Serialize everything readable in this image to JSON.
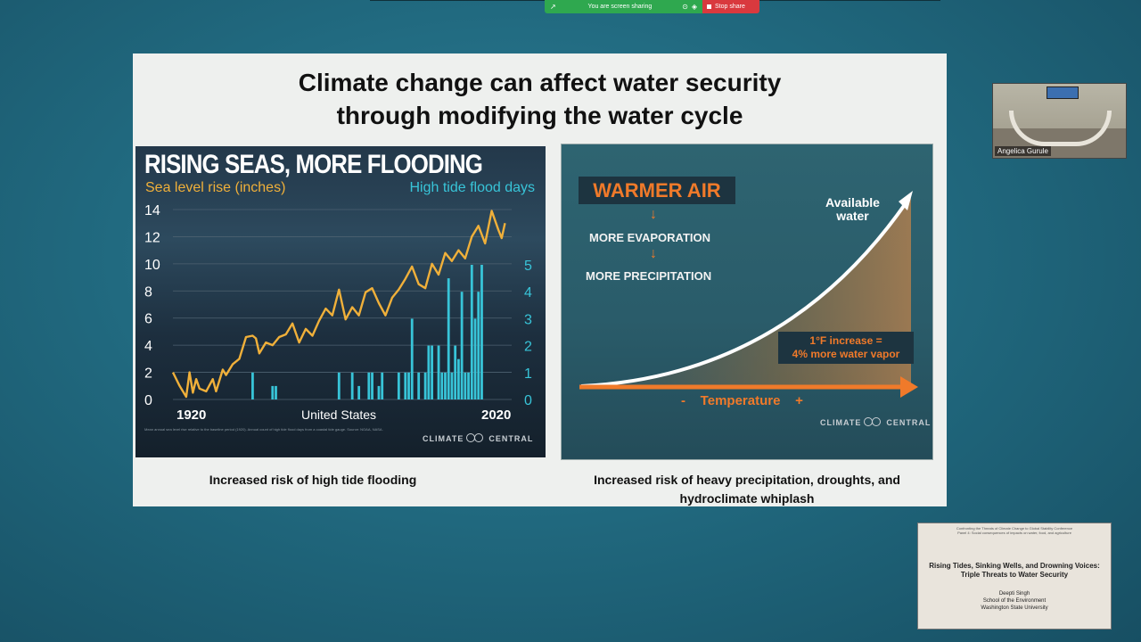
{
  "share_bar": {
    "sharing_text": "You are screen sharing",
    "stop_label": "Stop share",
    "colors": {
      "sharing": "#2fa84f",
      "stop": "#d9393e"
    }
  },
  "slide": {
    "title": "Climate change can affect water security through modifying the water cycle",
    "left_caption": "Increased risk of high tide flooding",
    "right_caption_line1": "Increased risk of heavy precipitation, droughts, and",
    "right_caption_line2": "hydroclimate whiplash",
    "left_figure": {
      "title": "RISING SEAS, MORE FLOODING",
      "left_axis_title": "Sea level rise (inches)",
      "right_axis_title": "High tide flood days",
      "center_label": "United States",
      "x_start_label": "1920",
      "x_end_label": "2020",
      "source_note": "Mean annual sea level rise relative to the baseline period (1920). Annual count of high tide flood days from a coastal tide gauge. Source: NOAA, NASA.",
      "logo": "CLIMATE CENTRAL"
    },
    "right_figure": {
      "box1": "WARMER AIR",
      "step2": "MORE EVAPORATION",
      "step3": "MORE PRECIPITATION",
      "curve_label_line1": "Available",
      "curve_label_line2": "water",
      "vapor_line1": "1°F increase =",
      "vapor_line2": "4% more water vapor",
      "axis_label": "Temperature",
      "axis_minus": "-",
      "axis_plus": "+",
      "logo": "CLIMATE CENTRAL"
    }
  },
  "chart_data": {
    "type": "line",
    "title": "RISING SEAS, MORE FLOODING",
    "subtitle": "United States",
    "xlabel": "",
    "ylabel": "Sea level rise (inches)",
    "y2label": "High tide flood days",
    "xlim": [
      1920,
      2022
    ],
    "ylim": [
      0,
      14
    ],
    "y2lim": [
      0,
      5
    ],
    "y_ticks": [
      0,
      2,
      4,
      6,
      8,
      10,
      12,
      14
    ],
    "y2_ticks": [
      0,
      1,
      2,
      3,
      4,
      5
    ],
    "x_tick_labels": [
      "1920",
      "2020"
    ],
    "series": [
      {
        "name": "Sea level rise (inches)",
        "kind": "line",
        "color": "#f0b03a",
        "x": [
          1920,
          1922,
          1924,
          1925,
          1926,
          1927,
          1928,
          1930,
          1932,
          1933,
          1935,
          1936,
          1938,
          1940,
          1942,
          1944,
          1945,
          1946,
          1948,
          1950,
          1952,
          1954,
          1956,
          1958,
          1960,
          1962,
          1964,
          1966,
          1968,
          1970,
          1972,
          1974,
          1976,
          1978,
          1980,
          1982,
          1984,
          1986,
          1988,
          1990,
          1992,
          1994,
          1996,
          1998,
          2000,
          2002,
          2004,
          2006,
          2008,
          2010,
          2012,
          2014,
          2016,
          2018,
          2019,
          2020
        ],
        "values": [
          2.0,
          1.0,
          0.2,
          2.0,
          0.5,
          1.5,
          0.8,
          0.6,
          1.5,
          0.6,
          2.2,
          1.8,
          2.6,
          3.0,
          4.6,
          4.7,
          4.5,
          3.4,
          4.2,
          4.0,
          4.6,
          4.8,
          5.6,
          4.2,
          5.2,
          4.7,
          5.8,
          6.7,
          6.2,
          8.1,
          5.9,
          6.8,
          6.2,
          7.9,
          8.2,
          7.1,
          6.2,
          7.5,
          8.1,
          8.9,
          9.8,
          8.5,
          8.2,
          10.0,
          9.2,
          10.8,
          10.2,
          11.0,
          10.4,
          12.0,
          12.8,
          11.5,
          13.9,
          12.5,
          11.9,
          13.0
        ]
      },
      {
        "name": "High tide flood days",
        "kind": "bar",
        "color": "#38c4d8",
        "x": [
          1944,
          1950,
          1951,
          1970,
          1974,
          1976,
          1979,
          1980,
          1982,
          1983,
          1988,
          1990,
          1991,
          1992,
          1994,
          1996,
          1997,
          1998,
          2000,
          2001,
          2002,
          2003,
          2004,
          2005,
          2006,
          2007,
          2008,
          2009,
          2010,
          2011,
          2012,
          2013
        ],
        "values": [
          1,
          0.5,
          0.5,
          1,
          1,
          0.5,
          1,
          1,
          0.5,
          1,
          1,
          1,
          1,
          3,
          1,
          1,
          2,
          2,
          2,
          1,
          1,
          4.5,
          1,
          2,
          1.5,
          4,
          1,
          1,
          5,
          3,
          4,
          5
        ]
      }
    ]
  },
  "video_tile": {
    "name": "Angelica Gurule"
  },
  "thumbnail": {
    "header_line1": "Confronting the Threats of Climate Change to Global Stability Conference",
    "header_line2": "Panel 4: Social consequences of impacts on water, food, and agriculture",
    "title_line1": "Rising Tides, Sinking Wells, and Drowning Voices:",
    "title_line2": "Triple Threats to Water Security",
    "author": "Deepti Singh",
    "dept": "School of the Environment",
    "university": "Washington State University"
  }
}
